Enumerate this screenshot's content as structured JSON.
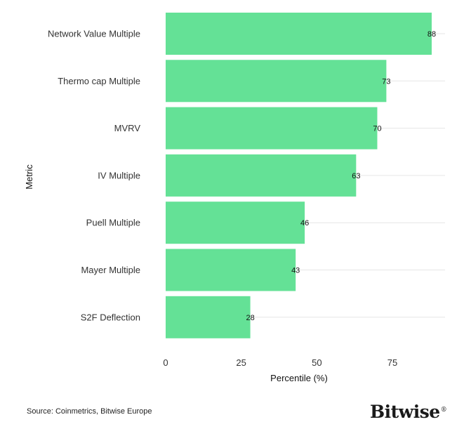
{
  "chart_data": {
    "type": "bar",
    "orientation": "horizontal",
    "categories": [
      "Network Value Multiple",
      "Thermo cap Multiple",
      "MVRV",
      "IV Multiple",
      "Puell Multiple",
      "Mayer Multiple",
      "S2F Deflection"
    ],
    "values": [
      88,
      73,
      70,
      63,
      46,
      43,
      28
    ],
    "xlabel": "Percentile (%)",
    "ylabel": "Metric",
    "xlim": [
      0,
      92
    ],
    "xticks": [
      0,
      25,
      50,
      75
    ],
    "grid": "horizontal",
    "bar_color": "#64e196"
  },
  "footer": {
    "source": "Source: Coinmetrics, Bitwise Europe",
    "brand": "Bitwise",
    "brand_mark": "®"
  }
}
